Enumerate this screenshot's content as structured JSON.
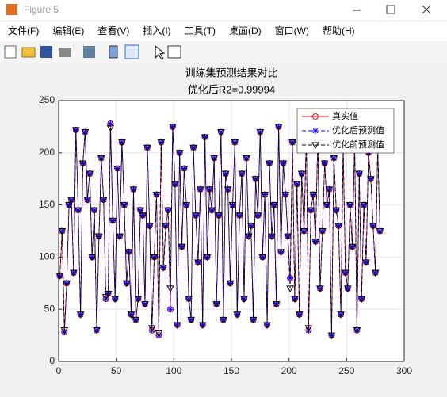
{
  "window_title": "Figure 5",
  "menu": [
    "文件(F)",
    "编辑(E)",
    "查看(V)",
    "插入(I)",
    "工具(T)",
    "桌面(D)",
    "窗口(W)",
    "帮助(H)"
  ],
  "chart_data": {
    "type": "line",
    "title": "训练集预测结果对比",
    "subtitle": "优化后R2=0.99994",
    "x": [
      1,
      3,
      5,
      7,
      9,
      11,
      13,
      15,
      17,
      19,
      21,
      23,
      25,
      27,
      29,
      31,
      33,
      35,
      37,
      39,
      41,
      43,
      45,
      47,
      49,
      51,
      53,
      55,
      57,
      59,
      61,
      63,
      65,
      67,
      69,
      71,
      73,
      75,
      77,
      79,
      81,
      83,
      85,
      87,
      89,
      91,
      93,
      95,
      97,
      99,
      101,
      103,
      105,
      107,
      109,
      111,
      113,
      115,
      117,
      119,
      121,
      123,
      125,
      127,
      129,
      131,
      133,
      135,
      137,
      139,
      141,
      143,
      145,
      147,
      149,
      151,
      153,
      155,
      157,
      159,
      161,
      163,
      165,
      167,
      169,
      171,
      173,
      175,
      177,
      179,
      181,
      183,
      185,
      187,
      189,
      191,
      193,
      195,
      197,
      199,
      201,
      203,
      205,
      207,
      209,
      211,
      213,
      215,
      217,
      219,
      221,
      223,
      225,
      227,
      229,
      231,
      233,
      235,
      237,
      239,
      241,
      243,
      245,
      247,
      249,
      251,
      253,
      255,
      257,
      259,
      261,
      263,
      265,
      267,
      269,
      271,
      273,
      275,
      277,
      279
    ],
    "series": [
      {
        "name": "真实值",
        "color": "#ff0000",
        "marker": "circle",
        "dash": false,
        "values": [
          82,
          125,
          28,
          75,
          150,
          155,
          85,
          222,
          145,
          45,
          190,
          220,
          155,
          180,
          100,
          145,
          30,
          120,
          195,
          155,
          60,
          65,
          228,
          135,
          60,
          185,
          120,
          210,
          150,
          75,
          105,
          45,
          165,
          40,
          60,
          145,
          140,
          55,
          205,
          130,
          30,
          100,
          160,
          25,
          210,
          90,
          130,
          145,
          50,
          225,
          170,
          35,
          200,
          110,
          185,
          150,
          60,
          40,
          205,
          140,
          95,
          165,
          35,
          215,
          100,
          165,
          145,
          195,
          55,
          140,
          220,
          40,
          180,
          165,
          75,
          150,
          210,
          45,
          140,
          180,
          60,
          195,
          120,
          130,
          40,
          175,
          140,
          220,
          100,
          160,
          35,
          190,
          120,
          150,
          55,
          225,
          105,
          190,
          160,
          120,
          80,
          210,
          60,
          170,
          45,
          180,
          125,
          215,
          30,
          145,
          160,
          115,
          215,
          70,
          125,
          190,
          150,
          165,
          25,
          195,
          145,
          130,
          45,
          205,
          85,
          70,
          150,
          110,
          210,
          30,
          180,
          60,
          150,
          95,
          200,
          175,
          130,
          85,
          205,
          125
        ]
      },
      {
        "name": "优化后预测值",
        "color": "#0000ff",
        "marker": "star",
        "dash": true,
        "values": [
          82,
          125,
          28,
          75,
          150,
          155,
          85,
          222,
          145,
          45,
          190,
          220,
          155,
          180,
          100,
          145,
          30,
          120,
          195,
          155,
          60,
          65,
          228,
          135,
          60,
          185,
          120,
          210,
          150,
          75,
          105,
          45,
          165,
          40,
          60,
          145,
          140,
          55,
          205,
          130,
          30,
          100,
          160,
          25,
          210,
          90,
          130,
          145,
          50,
          225,
          170,
          35,
          200,
          110,
          185,
          150,
          60,
          40,
          205,
          140,
          95,
          165,
          35,
          215,
          100,
          165,
          145,
          195,
          55,
          140,
          220,
          40,
          180,
          165,
          75,
          150,
          210,
          45,
          140,
          180,
          60,
          195,
          120,
          130,
          40,
          175,
          140,
          220,
          100,
          160,
          35,
          190,
          120,
          150,
          55,
          225,
          105,
          190,
          160,
          120,
          80,
          210,
          60,
          170,
          45,
          180,
          125,
          215,
          30,
          145,
          160,
          115,
          215,
          70,
          125,
          190,
          150,
          165,
          25,
          195,
          145,
          130,
          45,
          205,
          85,
          70,
          150,
          110,
          210,
          30,
          180,
          60,
          150,
          95,
          200,
          175,
          130,
          85,
          205,
          125
        ]
      },
      {
        "name": "优化前预测值",
        "color": "#000000",
        "marker": "triangle",
        "dash": true,
        "values": [
          82,
          125,
          30,
          75,
          150,
          155,
          85,
          222,
          145,
          45,
          190,
          220,
          155,
          180,
          100,
          145,
          30,
          120,
          195,
          155,
          62,
          65,
          224,
          135,
          60,
          185,
          120,
          210,
          150,
          75,
          105,
          45,
          165,
          40,
          60,
          145,
          140,
          55,
          205,
          130,
          32,
          100,
          160,
          27,
          210,
          90,
          130,
          145,
          70,
          225,
          170,
          35,
          200,
          110,
          185,
          150,
          60,
          40,
          205,
          140,
          95,
          165,
          35,
          215,
          100,
          165,
          145,
          195,
          55,
          140,
          220,
          40,
          180,
          165,
          75,
          150,
          210,
          45,
          140,
          180,
          60,
          195,
          120,
          130,
          40,
          175,
          140,
          220,
          100,
          160,
          35,
          190,
          120,
          150,
          55,
          225,
          105,
          190,
          160,
          120,
          70,
          210,
          60,
          170,
          45,
          180,
          125,
          215,
          32,
          145,
          160,
          115,
          215,
          70,
          125,
          190,
          150,
          165,
          25,
          195,
          145,
          130,
          45,
          205,
          85,
          70,
          150,
          110,
          210,
          30,
          180,
          60,
          150,
          95,
          200,
          175,
          130,
          85,
          205,
          125
        ]
      }
    ],
    "xlim": [
      0,
      300
    ],
    "xticks": [
      0,
      50,
      100,
      150,
      200,
      250,
      300
    ],
    "ylim": [
      0,
      250
    ],
    "yticks": [
      0,
      50,
      100,
      150,
      200,
      250
    ],
    "grid": true,
    "legend": "northeast"
  }
}
